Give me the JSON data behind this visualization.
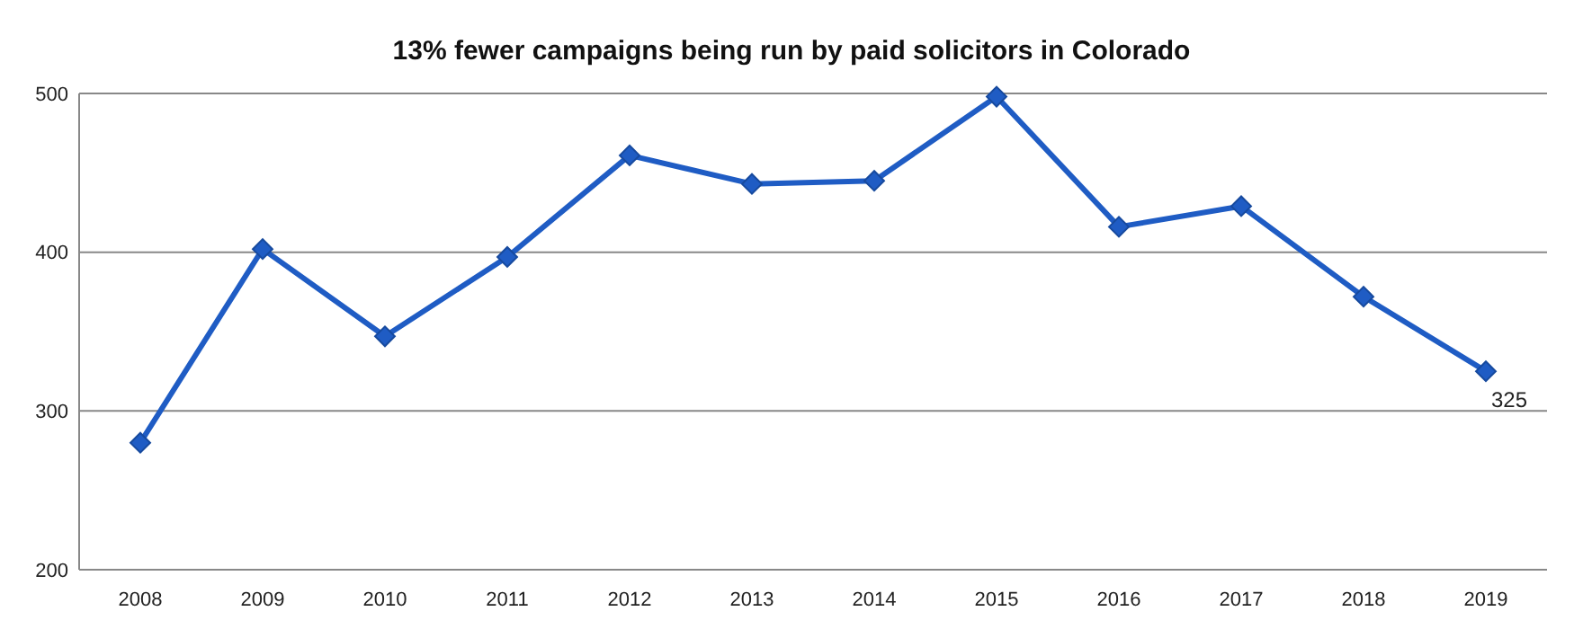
{
  "chart_data": {
    "type": "line",
    "title": "13% fewer campaigns being run by paid solicitors in Colorado",
    "categories": [
      "2008",
      "2009",
      "2010",
      "2011",
      "2012",
      "2013",
      "2014",
      "2015",
      "2016",
      "2017",
      "2018",
      "2019"
    ],
    "series": [
      {
        "color": "#1f5cc4",
        "values": [
          280,
          402,
          347,
          397,
          461,
          443,
          445,
          498,
          416,
          429,
          372,
          325
        ],
        "value_labels": [
          null,
          null,
          null,
          null,
          null,
          null,
          null,
          null,
          null,
          null,
          null,
          "325"
        ]
      }
    ],
    "ylim": [
      200,
      500
    ],
    "yticks": [
      200,
      300,
      400,
      500
    ],
    "grid": "y",
    "marker": "diamond",
    "line_style": "solid"
  }
}
